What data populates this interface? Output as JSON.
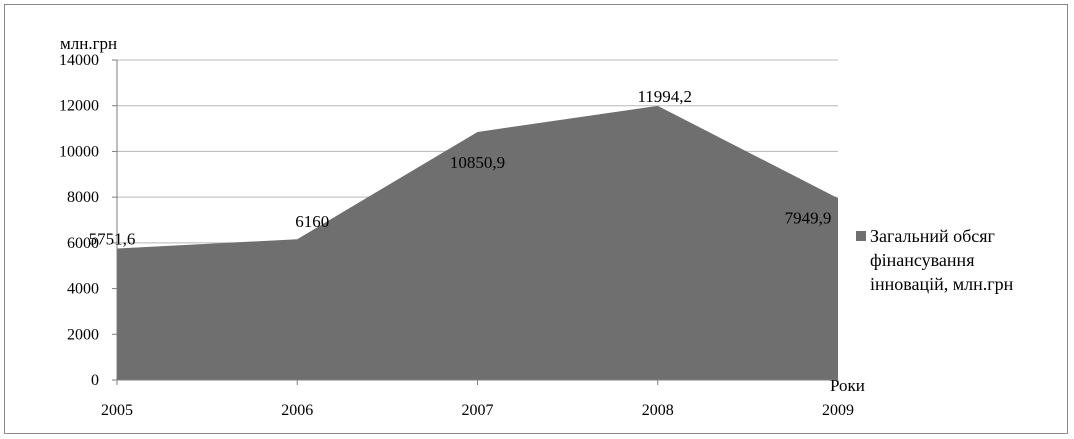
{
  "chart_data": {
    "type": "area",
    "title": "",
    "ylabel": "млн.грн",
    "xlabel": "Роки",
    "categories": [
      "2005",
      "2006",
      "2007",
      "2008",
      "2009"
    ],
    "series": [
      {
        "name": "Загальний обсяг фінансування інновацій, млн.грн",
        "values": [
          5751.6,
          6160,
          10850.9,
          11994.2,
          7949.9
        ],
        "data_labels": [
          "5751,6",
          "6160",
          "10850,9",
          "11994,2",
          "7949,9"
        ],
        "color": "#6f6f6f"
      }
    ],
    "ylim": [
      0,
      14000
    ],
    "yticks": [
      "0",
      "2000",
      "4000",
      "6000",
      "8000",
      "10000",
      "12000",
      "14000"
    ],
    "grid": true,
    "legend_position": "right",
    "legend_lines": [
      "Загальний обсяг",
      "фінансування",
      "інновацій, млн.грн"
    ]
  }
}
